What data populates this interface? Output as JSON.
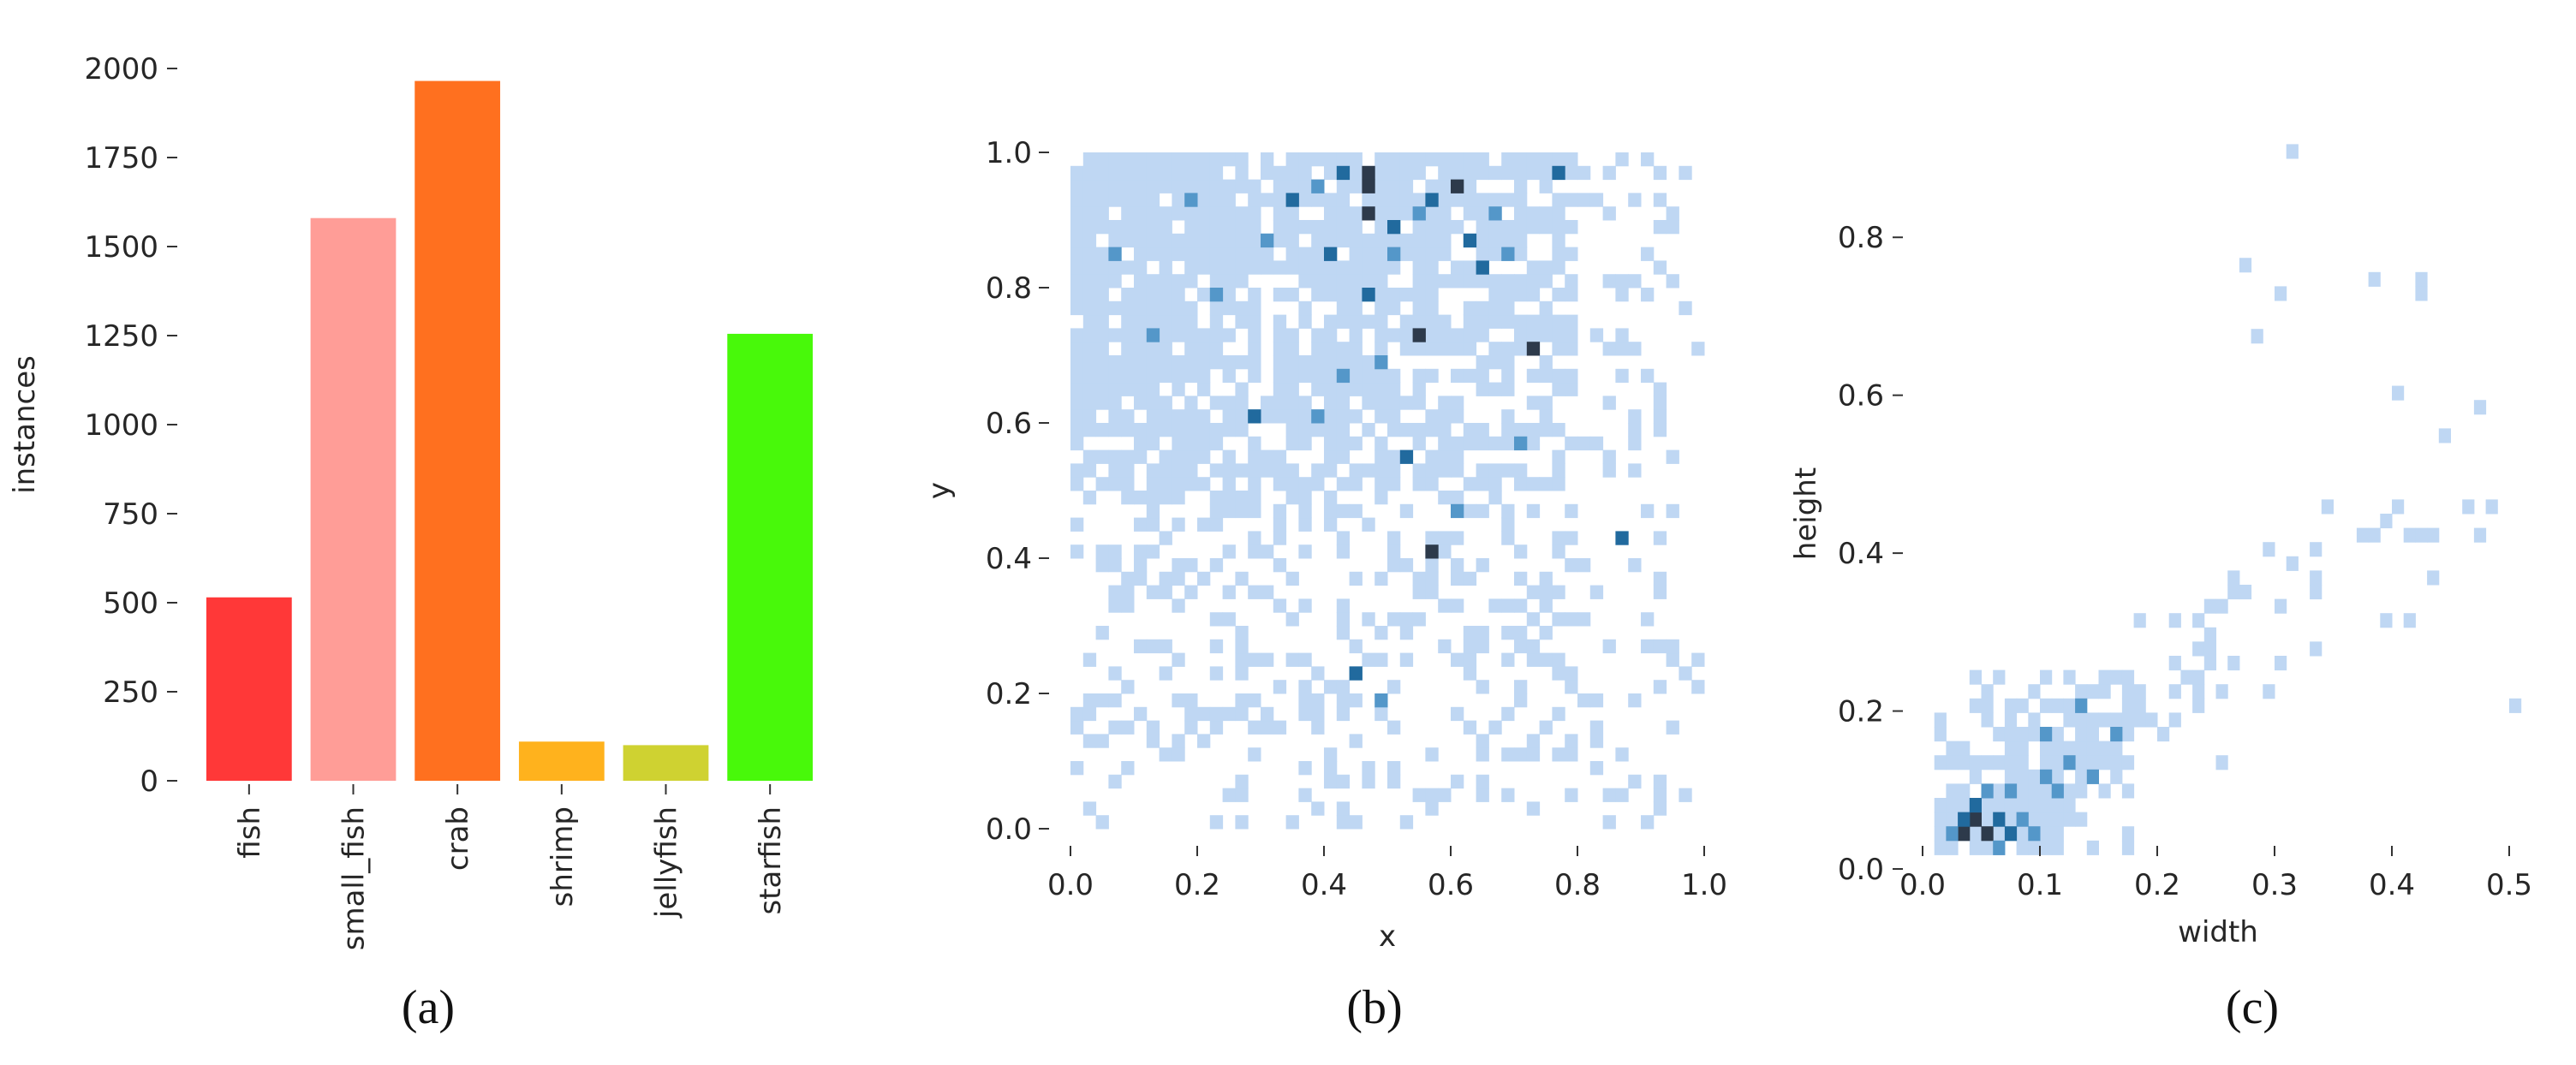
{
  "chart_data": [
    {
      "type": "bar",
      "caption": "(a)",
      "ylabel": "instances",
      "ylim": [
        0,
        2000
      ],
      "yticks": [
        "0",
        "250",
        "500",
        "750",
        "1000",
        "1250",
        "1500",
        "1750",
        "2000"
      ],
      "categories": [
        "fish",
        "small_fish",
        "crab",
        "shrimp",
        "jellyfish",
        "starfish"
      ],
      "values": [
        515,
        1580,
        1965,
        110,
        100,
        1255
      ],
      "colors": [
        "#ff3838",
        "#ff9d97",
        "#ff701f",
        "#ffb21d",
        "#cfd231",
        "#48f90a"
      ]
    },
    {
      "type": "heatmap",
      "caption": "(b)",
      "xlabel": "x",
      "ylabel": "y",
      "xlim": [
        0,
        1
      ],
      "ylim": [
        0,
        1
      ],
      "xticks": [
        "0.0",
        "0.2",
        "0.4",
        "0.6",
        "0.8",
        "1.0"
      ],
      "yticks": [
        "0.0",
        "0.2",
        "0.4",
        "0.6",
        "0.8",
        "1.0"
      ],
      "color": "#1f77b4",
      "bins": 50,
      "cells": [
        [
          0.46,
          0.97,
          4
        ],
        [
          0.47,
          0.94,
          4
        ],
        [
          0.47,
          0.91,
          4
        ],
        [
          0.55,
          0.72,
          4
        ],
        [
          0.72,
          0.71,
          4
        ],
        [
          0.57,
          0.41,
          4
        ],
        [
          0.61,
          0.95,
          4
        ],
        [
          0.41,
          0.84,
          3
        ],
        [
          0.51,
          0.88,
          3
        ],
        [
          0.43,
          0.97,
          3
        ],
        [
          0.34,
          0.93,
          3
        ],
        [
          0.62,
          0.87,
          3
        ],
        [
          0.65,
          0.82,
          3
        ],
        [
          0.52,
          0.55,
          3
        ],
        [
          0.86,
          0.43,
          3
        ],
        [
          0.45,
          0.22,
          3
        ],
        [
          0.29,
          0.61,
          3
        ],
        [
          0.46,
          0.78,
          3
        ],
        [
          0.77,
          0.96,
          3
        ],
        [
          0.58,
          0.93,
          3
        ],
        [
          0.19,
          0.93,
          2
        ],
        [
          0.3,
          0.87,
          2
        ],
        [
          0.38,
          0.95,
          2
        ],
        [
          0.55,
          0.9,
          2
        ],
        [
          0.67,
          0.91,
          2
        ],
        [
          0.22,
          0.78,
          2
        ],
        [
          0.49,
          0.68,
          2
        ],
        [
          0.39,
          0.6,
          2
        ],
        [
          0.69,
          0.85,
          2
        ],
        [
          0.51,
          0.84,
          2
        ],
        [
          0.42,
          0.66,
          2
        ],
        [
          0.6,
          0.47,
          2
        ],
        [
          0.48,
          0.18,
          2
        ],
        [
          0.06,
          0.85,
          2
        ],
        [
          0.12,
          0.73,
          2
        ],
        [
          0.7,
          0.58,
          2
        ]
      ]
    },
    {
      "type": "heatmap",
      "caption": "(c)",
      "xlabel": "width",
      "ylabel": "height",
      "xlim": [
        0,
        0.5
      ],
      "ylim": [
        0,
        0.9
      ],
      "xticks": [
        "0.0",
        "0.1",
        "0.2",
        "0.3",
        "0.4",
        "0.5"
      ],
      "yticks": [
        "0.0",
        "0.2",
        "0.4",
        "0.6",
        "0.8"
      ],
      "color": "#1f77b4",
      "cells": [
        [
          0.04,
          0.06,
          4
        ],
        [
          0.05,
          0.05,
          4
        ],
        [
          0.03,
          0.04,
          4
        ],
        [
          0.06,
          0.06,
          3
        ],
        [
          0.04,
          0.08,
          3
        ],
        [
          0.07,
          0.04,
          3
        ],
        [
          0.03,
          0.06,
          3
        ],
        [
          0.05,
          0.09,
          2
        ],
        [
          0.08,
          0.07,
          2
        ],
        [
          0.02,
          0.05,
          2
        ],
        [
          0.06,
          0.03,
          2
        ],
        [
          0.09,
          0.05,
          2
        ],
        [
          0.1,
          0.12,
          2
        ],
        [
          0.12,
          0.14,
          2
        ],
        [
          0.07,
          0.1,
          2
        ],
        [
          0.11,
          0.09,
          2
        ],
        [
          0.14,
          0.12,
          2
        ],
        [
          0.1,
          0.17,
          2
        ],
        [
          0.16,
          0.17,
          2
        ],
        [
          0.13,
          0.2,
          2
        ]
      ]
    }
  ]
}
